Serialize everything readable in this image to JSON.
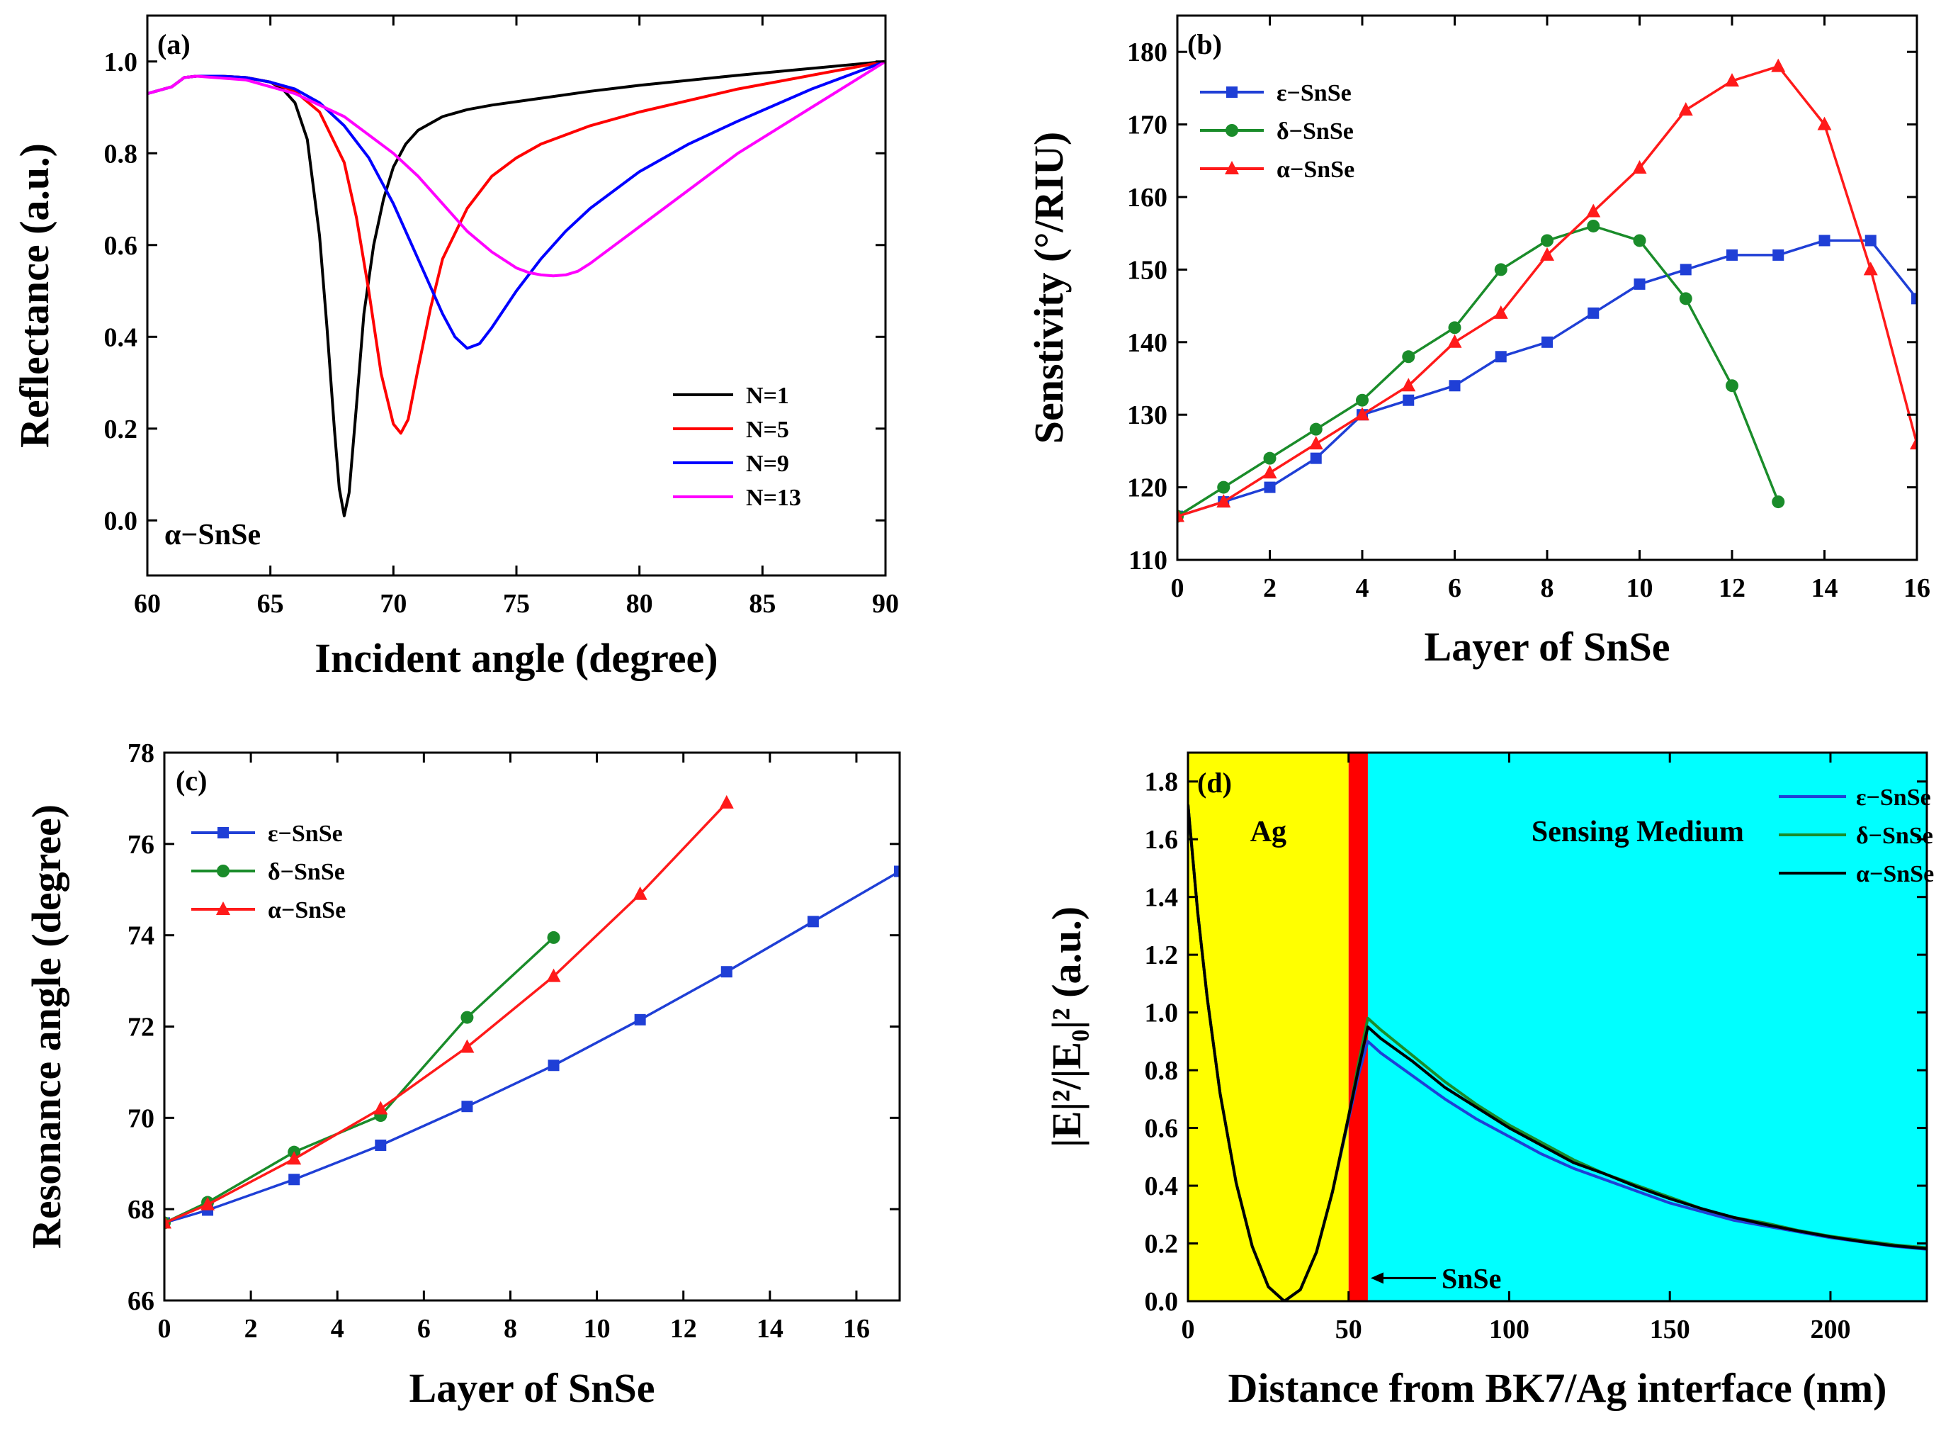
{
  "chart_data": [
    {
      "panel": "(a)",
      "type": "line",
      "xlabel": "Incident angle (degree)",
      "ylabel": "Reflectance (a.u.)",
      "xlim": [
        60,
        90
      ],
      "ylim": [
        -0.12,
        1.1
      ],
      "xticks": [
        60,
        65,
        70,
        75,
        80,
        85,
        90
      ],
      "yticks": [
        0.0,
        0.2,
        0.4,
        0.6,
        0.8,
        1.0
      ],
      "ytick_format": 1,
      "annotation": "α−SnSe",
      "legend": "lower-right",
      "series": [
        {
          "name": "N=1",
          "color": "#000000",
          "x": [
            60,
            61,
            61.5,
            62,
            63,
            64,
            65,
            65.5,
            66,
            66.5,
            67,
            67.3,
            67.6,
            67.8,
            68,
            68.2,
            68.5,
            68.8,
            69.2,
            69.6,
            70,
            70.5,
            71,
            72,
            73,
            74,
            76,
            78,
            80,
            84,
            90
          ],
          "y": [
            0.93,
            0.945,
            0.965,
            0.968,
            0.968,
            0.965,
            0.955,
            0.94,
            0.91,
            0.83,
            0.62,
            0.42,
            0.2,
            0.07,
            0.01,
            0.06,
            0.25,
            0.45,
            0.6,
            0.7,
            0.77,
            0.82,
            0.85,
            0.88,
            0.895,
            0.905,
            0.92,
            0.935,
            0.948,
            0.97,
            1.0
          ]
        },
        {
          "name": "N=5",
          "color": "#ff0000",
          "x": [
            60,
            61,
            61.5,
            62,
            63,
            64,
            65,
            66,
            67,
            68,
            68.5,
            69,
            69.5,
            70,
            70.3,
            70.6,
            71,
            71.5,
            72,
            73,
            74,
            75,
            76,
            78,
            80,
            84,
            90
          ],
          "y": [
            0.93,
            0.945,
            0.965,
            0.968,
            0.968,
            0.965,
            0.955,
            0.935,
            0.89,
            0.78,
            0.66,
            0.5,
            0.32,
            0.21,
            0.19,
            0.22,
            0.33,
            0.46,
            0.57,
            0.68,
            0.75,
            0.79,
            0.82,
            0.86,
            0.89,
            0.94,
            1.0
          ]
        },
        {
          "name": "N=9",
          "color": "#0000ff",
          "x": [
            60,
            61,
            61.5,
            62,
            63,
            64,
            65,
            66,
            67,
            68,
            69,
            70,
            71,
            72,
            72.5,
            73,
            73.5,
            74,
            75,
            76,
            77,
            78,
            80,
            82,
            84,
            87,
            90
          ],
          "y": [
            0.93,
            0.945,
            0.965,
            0.968,
            0.968,
            0.965,
            0.955,
            0.94,
            0.91,
            0.86,
            0.79,
            0.69,
            0.57,
            0.45,
            0.4,
            0.375,
            0.385,
            0.42,
            0.5,
            0.57,
            0.63,
            0.68,
            0.76,
            0.82,
            0.87,
            0.94,
            1.0
          ]
        },
        {
          "name": "N=13",
          "color": "#ff00ff",
          "x": [
            60,
            61,
            61.5,
            62,
            64,
            66,
            68,
            70,
            71,
            72,
            73,
            74,
            75,
            75.5,
            76,
            76.5,
            77,
            77.5,
            78,
            79,
            80,
            82,
            84,
            87,
            90
          ],
          "y": [
            0.93,
            0.945,
            0.965,
            0.968,
            0.96,
            0.93,
            0.88,
            0.8,
            0.75,
            0.69,
            0.63,
            0.585,
            0.55,
            0.54,
            0.535,
            0.533,
            0.535,
            0.543,
            0.56,
            0.6,
            0.64,
            0.72,
            0.8,
            0.9,
            1.0
          ]
        }
      ]
    },
    {
      "panel": "(b)",
      "type": "line",
      "xlabel": "Layer of SnSe",
      "ylabel": "Senstivity (°/RIU)",
      "xlim": [
        0,
        16
      ],
      "ylim": [
        110,
        185
      ],
      "xticks": [
        0,
        2,
        4,
        6,
        8,
        10,
        12,
        14,
        16
      ],
      "yticks": [
        110,
        120,
        130,
        140,
        150,
        160,
        170,
        180
      ],
      "ytick_format": 0,
      "legend": "top-left",
      "series": [
        {
          "name": "ε−SnSe",
          "color": "#1f3fd6",
          "marker": "square",
          "x": [
            0,
            1,
            2,
            3,
            4,
            5,
            6,
            7,
            8,
            9,
            10,
            11,
            12,
            13,
            14,
            15,
            16
          ],
          "y": [
            116,
            118,
            120,
            124,
            130,
            132,
            134,
            138,
            140,
            144,
            148,
            150,
            152,
            152,
            154,
            154,
            146
          ]
        },
        {
          "name": "δ−SnSe",
          "color": "#1a8c2a",
          "marker": "circle",
          "x": [
            0,
            1,
            2,
            3,
            4,
            5,
            6,
            7,
            8,
            9,
            10,
            11,
            12,
            13
          ],
          "y": [
            116,
            120,
            124,
            128,
            132,
            138,
            142,
            150,
            154,
            156,
            154,
            146,
            134,
            118
          ]
        },
        {
          "name": "α−SnSe",
          "color": "#ff1a1a",
          "marker": "triangle",
          "x": [
            0,
            1,
            2,
            3,
            4,
            5,
            6,
            7,
            8,
            9,
            10,
            11,
            12,
            13,
            14,
            15,
            16
          ],
          "y": [
            116,
            118,
            122,
            126,
            130,
            134,
            140,
            144,
            152,
            158,
            164,
            172,
            176,
            178,
            170,
            150,
            126
          ]
        }
      ]
    },
    {
      "panel": "(c)",
      "type": "line",
      "xlabel": "Layer of SnSe",
      "ylabel": "Resonance angle (degree)",
      "xlim": [
        0,
        17
      ],
      "ylim": [
        66,
        78
      ],
      "xticks": [
        0,
        2,
        4,
        6,
        8,
        10,
        12,
        14,
        16
      ],
      "yticks": [
        66,
        68,
        70,
        72,
        74,
        76,
        78
      ],
      "ytick_format": 0,
      "legend": "top-left",
      "series": [
        {
          "name": "ε−SnSe",
          "color": "#1f3fd6",
          "marker": "square",
          "x": [
            0,
            1,
            3,
            5,
            7,
            9,
            11,
            13,
            15,
            17
          ],
          "y": [
            67.7,
            67.98,
            68.65,
            69.4,
            70.25,
            71.15,
            72.15,
            73.2,
            74.3,
            75.4
          ]
        },
        {
          "name": "δ−SnSe",
          "color": "#1a8c2a",
          "marker": "circle",
          "x": [
            0,
            1,
            3,
            5,
            7,
            9
          ],
          "y": [
            67.7,
            68.15,
            69.25,
            70.05,
            72.2,
            73.95
          ]
        },
        {
          "name": "α−SnSe",
          "color": "#ff1a1a",
          "marker": "triangle",
          "x": [
            0,
            1,
            3,
            5,
            7,
            9,
            11,
            13
          ],
          "y": [
            67.7,
            68.1,
            69.1,
            70.2,
            71.55,
            73.1,
            74.9,
            76.9
          ]
        }
      ]
    },
    {
      "panel": "(d)",
      "type": "line",
      "xlabel": "Distance from BK7/Ag interface (nm)",
      "ylabel": "|E|²/|E₀|² (a.u.)",
      "xlim": [
        0,
        230
      ],
      "ylim": [
        0,
        1.9
      ],
      "xticks": [
        0,
        50,
        100,
        150,
        200
      ],
      "yticks": [
        0.0,
        0.2,
        0.4,
        0.6,
        0.8,
        1.0,
        1.2,
        1.4,
        1.6,
        1.8
      ],
      "ytick_format": 1,
      "legend": "top-right",
      "regions": [
        {
          "label": "Ag",
          "from": 0,
          "to": 50,
          "color": "#ffff00"
        },
        {
          "label": "SnSe",
          "from": 50,
          "to": 56,
          "color": "#ff0000"
        },
        {
          "label": "Sensing Medium",
          "from": 56,
          "to": 230,
          "color": "#00ffff"
        }
      ],
      "arrow_label": "SnSe",
      "series": [
        {
          "name": "ε−SnSe",
          "color": "#1f3fd6",
          "x": [
            0,
            3,
            6,
            10,
            15,
            20,
            25,
            30,
            35,
            40,
            45,
            50,
            53,
            56,
            60,
            70,
            80,
            90,
            100,
            110,
            120,
            130,
            140,
            150,
            160,
            170,
            180,
            190,
            200,
            210,
            220,
            230
          ],
          "y": [
            1.72,
            1.35,
            1.05,
            0.72,
            0.41,
            0.19,
            0.05,
            0.0,
            0.04,
            0.17,
            0.38,
            0.63,
            0.78,
            0.9,
            0.86,
            0.78,
            0.7,
            0.63,
            0.57,
            0.51,
            0.46,
            0.42,
            0.38,
            0.34,
            0.31,
            0.28,
            0.26,
            0.24,
            0.22,
            0.205,
            0.19,
            0.18
          ]
        },
        {
          "name": "δ−SnSe",
          "color": "#1a8c2a",
          "x": [
            0,
            3,
            6,
            10,
            15,
            20,
            25,
            30,
            35,
            40,
            45,
            50,
            53,
            56,
            60,
            70,
            80,
            90,
            100,
            110,
            120,
            130,
            140,
            150,
            160,
            170,
            180,
            190,
            200,
            210,
            220,
            230
          ],
          "y": [
            1.72,
            1.35,
            1.05,
            0.72,
            0.41,
            0.19,
            0.05,
            0.0,
            0.04,
            0.17,
            0.38,
            0.64,
            0.82,
            0.98,
            0.94,
            0.85,
            0.76,
            0.68,
            0.61,
            0.55,
            0.49,
            0.44,
            0.4,
            0.36,
            0.32,
            0.29,
            0.27,
            0.245,
            0.225,
            0.21,
            0.195,
            0.185
          ]
        },
        {
          "name": "α−SnSe",
          "color": "#000000",
          "x": [
            0,
            3,
            6,
            10,
            15,
            20,
            25,
            30,
            35,
            40,
            45,
            50,
            53,
            56,
            60,
            70,
            80,
            90,
            100,
            110,
            120,
            130,
            140,
            150,
            160,
            170,
            180,
            190,
            200,
            210,
            220,
            230
          ],
          "y": [
            1.72,
            1.35,
            1.05,
            0.72,
            0.41,
            0.19,
            0.05,
            0.0,
            0.04,
            0.17,
            0.38,
            0.64,
            0.8,
            0.95,
            0.91,
            0.83,
            0.74,
            0.67,
            0.6,
            0.54,
            0.48,
            0.44,
            0.395,
            0.355,
            0.32,
            0.29,
            0.265,
            0.243,
            0.223,
            0.206,
            0.192,
            0.182
          ]
        }
      ]
    }
  ]
}
